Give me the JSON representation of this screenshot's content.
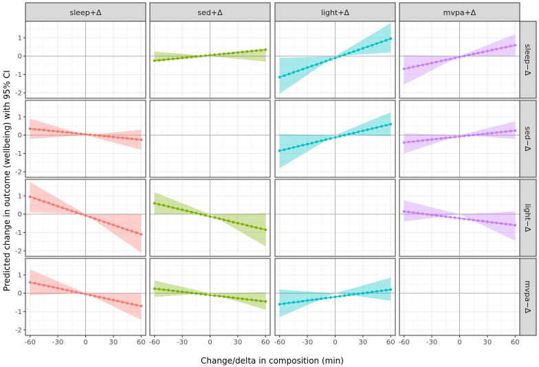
{
  "chart_data": {
    "type": "line",
    "facet_layout": "grid",
    "column_labels": [
      "sleep+Δ",
      "sed+Δ",
      "light+Δ",
      "mvpa+Δ"
    ],
    "row_labels": [
      "sleep−Δ",
      "sed−Δ",
      "light−Δ",
      "mvpa−Δ"
    ],
    "xlabel": "Change/delta in composition (min)",
    "ylabel": "Predicted change in outcome (wellbeing) with 95% CI",
    "xlim": [
      -65,
      65
    ],
    "ylim": [
      -2.3,
      1.9
    ],
    "x_ticks": [
      -60,
      -30,
      0,
      30,
      60
    ],
    "x_tick_labels": [
      "-60",
      "-30",
      "0",
      "30",
      "60"
    ],
    "y_ticks": [
      -2,
      -1,
      0,
      1
    ],
    "y_tick_labels": [
      "-2",
      "-1",
      "0",
      "1"
    ],
    "x_range": [
      -60,
      60
    ],
    "points_per_line": 25,
    "colors": [
      "#F8766D",
      "#7CAE00",
      "#00BFC4",
      "#C77CFF"
    ],
    "panels": [
      {
        "row": 0,
        "col": 1,
        "color": "#7CAE00",
        "y_at_min": -0.25,
        "y_at_max": 0.35,
        "ci_upper": [
          0.25,
          0.0,
          0.4
        ],
        "ci_lower": [
          -0.3,
          0.0,
          -0.3
        ]
      },
      {
        "row": 0,
        "col": 2,
        "color": "#00BFC4",
        "y_at_min": -1.15,
        "y_at_max": 0.95,
        "ci_upper": [
          -0.1,
          0.0,
          1.8
        ],
        "ci_lower": [
          -2.05,
          0.0,
          0.2
        ]
      },
      {
        "row": 0,
        "col": 3,
        "color": "#C77CFF",
        "y_at_min": -0.7,
        "y_at_max": 0.6,
        "ci_upper": [
          0.05,
          0.0,
          1.2
        ],
        "ci_lower": [
          -1.55,
          0.0,
          0.0
        ]
      },
      {
        "row": 1,
        "col": 0,
        "color": "#F8766D",
        "y_at_min": 0.35,
        "y_at_max": -0.25,
        "ci_upper": [
          0.9,
          0.0,
          0.3
        ],
        "ci_lower": [
          -0.2,
          0.0,
          -0.8
        ]
      },
      {
        "row": 1,
        "col": 2,
        "color": "#00BFC4",
        "y_at_min": -0.85,
        "y_at_max": 0.6,
        "ci_upper": [
          0.05,
          0.0,
          1.25
        ],
        "ci_lower": [
          -1.8,
          0.0,
          -0.05
        ]
      },
      {
        "row": 1,
        "col": 3,
        "color": "#C77CFF",
        "y_at_min": -0.4,
        "y_at_max": 0.25,
        "ci_upper": [
          0.1,
          0.0,
          0.75
        ],
        "ci_lower": [
          -1.0,
          0.0,
          -0.2
        ]
      },
      {
        "row": 2,
        "col": 0,
        "color": "#F8766D",
        "y_at_min": 0.95,
        "y_at_max": -1.1,
        "ci_upper": [
          1.75,
          0.0,
          0.0
        ],
        "ci_lower": [
          0.1,
          0.0,
          -2.1
        ]
      },
      {
        "row": 2,
        "col": 1,
        "color": "#7CAE00",
        "y_at_min": 0.6,
        "y_at_max": -0.85,
        "ci_upper": [
          1.2,
          0.0,
          0.05
        ],
        "ci_lower": [
          0.0,
          0.0,
          -1.75
        ]
      },
      {
        "row": 2,
        "col": 3,
        "color": "#C77CFF",
        "y_at_min": 0.15,
        "y_at_max": -0.6,
        "ci_upper": [
          0.75,
          0.0,
          0.15
        ],
        "ci_lower": [
          -0.4,
          0.0,
          -1.45
        ]
      },
      {
        "row": 3,
        "col": 0,
        "color": "#F8766D",
        "y_at_min": 0.6,
        "y_at_max": -0.7,
        "ci_upper": [
          1.3,
          0.0,
          0.0
        ],
        "ci_lower": [
          -0.1,
          0.0,
          -1.45
        ]
      },
      {
        "row": 3,
        "col": 1,
        "color": "#7CAE00",
        "y_at_min": 0.25,
        "y_at_max": -0.45,
        "ci_upper": [
          0.7,
          0.0,
          0.05
        ],
        "ci_lower": [
          -0.2,
          0.0,
          -0.9
        ]
      },
      {
        "row": 3,
        "col": 2,
        "color": "#00BFC4",
        "y_at_min": -0.6,
        "y_at_max": 0.2,
        "ci_upper": [
          0.2,
          0.0,
          0.85
        ],
        "ci_lower": [
          -1.3,
          0.0,
          -0.4
        ]
      }
    ]
  }
}
